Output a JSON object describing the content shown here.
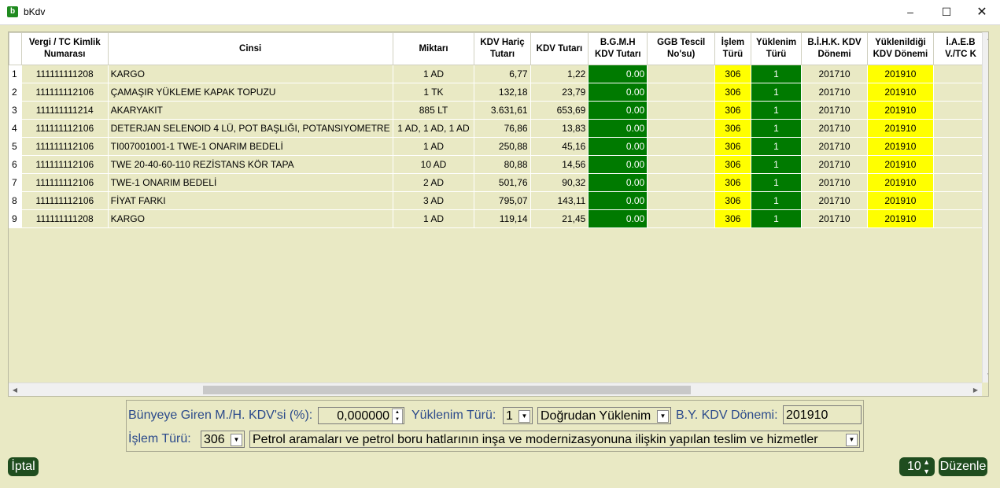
{
  "window": {
    "title": "bKdv",
    "icon_label": "b"
  },
  "grid": {
    "columns": [
      "",
      "Vergi / TC Kimlik Numarası",
      "Cinsi",
      "Miktarı",
      "KDV Hariç Tutarı",
      "KDV Tutarı",
      "B.G.M.H KDV Tutarı",
      "GGB Tescil No'su)",
      "İşlem Türü",
      "Yüklenim Türü",
      "B.İ.H.K. KDV Dönemi",
      "Yüklenildiği KDV Dönemi",
      "İ.A.E.B V./TC K"
    ],
    "rows": [
      [
        "1",
        "111111111208",
        "KARGO",
        "1 AD",
        "6,77",
        "1,22",
        "0.00",
        "",
        "306",
        "1",
        "201710",
        "201910",
        ""
      ],
      [
        "2",
        "111111112106",
        "ÇAMAŞIR YÜKLEME KAPAK TOPUZU",
        "1 TK",
        "132,18",
        "23,79",
        "0.00",
        "",
        "306",
        "1",
        "201710",
        "201910",
        ""
      ],
      [
        "3",
        "111111111214",
        "AKARYAKIT",
        "885 LT",
        "3.631,61",
        "653,69",
        "0.00",
        "",
        "306",
        "1",
        "201710",
        "201910",
        ""
      ],
      [
        "4",
        "111111112106",
        "DETERJAN SELENOID 4 LÜ, POT BAŞLIĞI, POTANSIYOMETRE",
        "1 AD, 1 AD, 1 AD",
        "76,86",
        "13,83",
        "0.00",
        "",
        "306",
        "1",
        "201710",
        "201910",
        ""
      ],
      [
        "5",
        "111111112106",
        "TI007001001-1 TWE-1 ONARIM BEDELİ",
        "1 AD",
        "250,88",
        "45,16",
        "0.00",
        "",
        "306",
        "1",
        "201710",
        "201910",
        ""
      ],
      [
        "6",
        "111111112106",
        "TWE 20-40-60-110 REZİSTANS KÖR TAPA",
        "10 AD",
        "80,88",
        "14,56",
        "0.00",
        "",
        "306",
        "1",
        "201710",
        "201910",
        ""
      ],
      [
        "7",
        "111111112106",
        "TWE-1 ONARIM BEDELİ",
        "2 AD",
        "501,76",
        "90,32",
        "0.00",
        "",
        "306",
        "1",
        "201710",
        "201910",
        ""
      ],
      [
        "8",
        "111111112106",
        "FİYAT FARKI",
        "3 AD",
        "795,07",
        "143,11",
        "0.00",
        "",
        "306",
        "1",
        "201710",
        "201910",
        ""
      ],
      [
        "9",
        "111111111208",
        "KARGO",
        "1 AD",
        "119,14",
        "21,45",
        "0.00",
        "",
        "306",
        "1",
        "201710",
        "201910",
        ""
      ]
    ]
  },
  "form": {
    "buyeye_label": "Bünyeye Giren M./H. KDV'si (%):",
    "buyeye_value": "0,000000",
    "yuklenim_label": "Yüklenim Türü:",
    "yuklenim_code": "1",
    "yuklenim_text": "Doğrudan Yüklenim",
    "by_kdv_label": "B.Y. KDV Dönemi:",
    "by_kdv_value": "201910",
    "islem_label": "İşlem Türü:",
    "islem_code": "306",
    "islem_text": "Petrol aramaları ve petrol boru hatlarının inşa ve modernizasyonuna ilişkin yapılan teslim ve hizmetler"
  },
  "buttons": {
    "iptal": "İptal",
    "duzenle": "Düzenle",
    "count_value": "10"
  },
  "colors": {
    "background": "#e9e9c4",
    "green": "#007a00",
    "yellow": "#ffff00",
    "button": "#1f4d1f"
  }
}
